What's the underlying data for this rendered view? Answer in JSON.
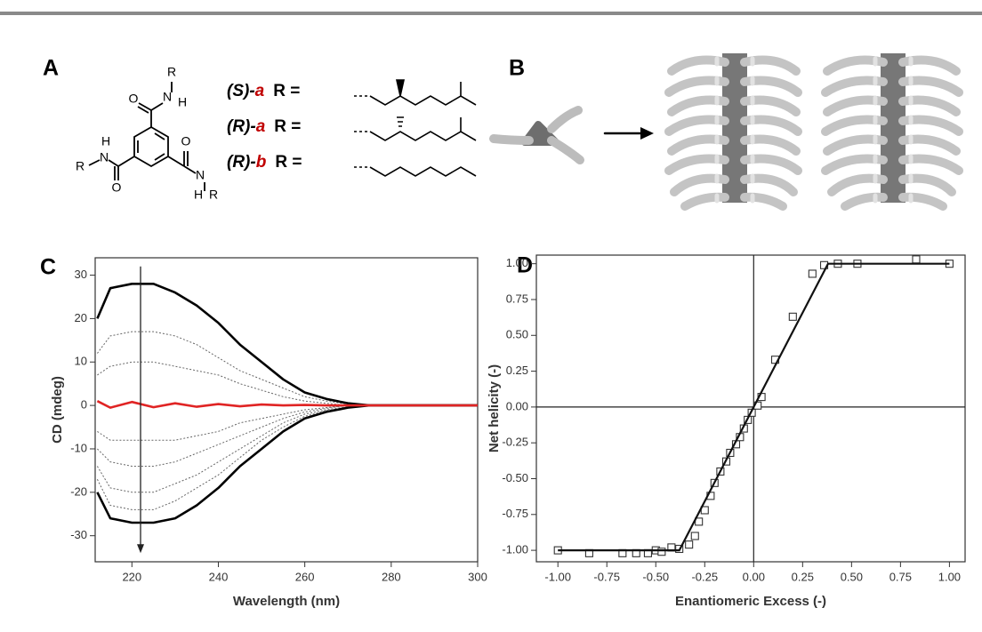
{
  "panel_a": {
    "label": "A",
    "atoms": [
      "R",
      "O",
      "N",
      "H",
      "H",
      "R",
      "N",
      "O",
      "O",
      "N",
      "H",
      "R"
    ],
    "compounds": [
      {
        "prefix": "(S)-",
        "letter": "a",
        "r": "R ="
      },
      {
        "prefix": "(R)-",
        "letter": "a",
        "r": "R ="
      },
      {
        "prefix": "(R)-",
        "letter": "b",
        "r": "R ="
      }
    ]
  },
  "panel_b": {
    "label": "B"
  },
  "chart_data": [
    {
      "type": "line",
      "panel_label": "C",
      "x_label": "Wavelength (nm)",
      "y_label": "CD (mdeg)",
      "xlim": [
        211.5,
        300
      ],
      "ylim": [
        -36,
        34
      ],
      "xticks": [
        220,
        240,
        260,
        280,
        300
      ],
      "yticks": [
        30,
        20,
        10,
        0,
        -10,
        -20,
        -30
      ],
      "x": [
        212,
        215,
        220,
        225,
        230,
        235,
        240,
        245,
        250,
        255,
        260,
        265,
        270,
        275,
        280,
        285,
        290,
        295,
        300
      ],
      "series": [
        {
          "color": "#666666",
          "style": "dotted",
          "values": [
            12,
            16,
            17,
            17,
            16,
            14,
            11,
            8,
            6,
            4,
            2,
            1,
            0.3,
            0,
            0,
            0,
            0,
            0,
            0
          ]
        },
        {
          "color": "#666666",
          "style": "dotted",
          "values": [
            7,
            9,
            10,
            10,
            9,
            8,
            7,
            5,
            3.5,
            2,
            1,
            0.5,
            0,
            0,
            0,
            0,
            0,
            0,
            0
          ]
        },
        {
          "color": "#666666",
          "style": "dotted",
          "values": [
            -6,
            -8,
            -8,
            -8,
            -8,
            -7,
            -6,
            -4,
            -3,
            -2,
            -1,
            -0.5,
            0,
            0,
            0,
            0,
            0,
            0,
            0
          ]
        },
        {
          "color": "#666666",
          "style": "dotted",
          "values": [
            -10,
            -13,
            -14,
            -14,
            -13,
            -11,
            -9,
            -7,
            -5,
            -3,
            -1.5,
            -0.7,
            0,
            0,
            0,
            0,
            0,
            0,
            0
          ]
        },
        {
          "color": "#666666",
          "style": "dotted",
          "values": [
            -14,
            -19,
            -20,
            -20,
            -18,
            -16,
            -13,
            -10,
            -7,
            -4,
            -2,
            -1,
            -0.3,
            0,
            0,
            0,
            0,
            0,
            0
          ]
        },
        {
          "color": "#666666",
          "style": "dotted",
          "values": [
            -17,
            -23,
            -24,
            -24,
            -22,
            -19,
            -16,
            -12,
            -8,
            -5,
            -2.5,
            -1.2,
            -0.4,
            0,
            0,
            0,
            0,
            0,
            0
          ]
        },
        {
          "color": "#000000",
          "style": "solid",
          "values": [
            20,
            27,
            28,
            28,
            26,
            23,
            19,
            14,
            10,
            6,
            3,
            1.5,
            0.5,
            0,
            0,
            0,
            0,
            0,
            0
          ]
        },
        {
          "color": "#000000",
          "style": "solid",
          "values": [
            -20,
            -26,
            -27,
            -27,
            -26,
            -23,
            -19,
            -14,
            -10,
            -6,
            -3,
            -1.5,
            -0.5,
            0,
            0,
            0,
            0,
            0,
            0
          ]
        },
        {
          "color": "#e02424",
          "style": "solid",
          "values": [
            1,
            -0.5,
            0.8,
            -0.4,
            0.5,
            -0.3,
            0.3,
            -0.2,
            0.2,
            0,
            0.1,
            0,
            0,
            0,
            0,
            0,
            0,
            0,
            0
          ]
        }
      ],
      "arrow": {
        "x": 222,
        "from": 32,
        "to": -34
      }
    },
    {
      "type": "scatter",
      "panel_label": "D",
      "x_label": "Enantiomeric Excess (-)",
      "y_label": "Net helicity (-)",
      "xlim": [
        -1.11,
        1.08
      ],
      "ylim": [
        -1.08,
        1.06
      ],
      "zero_lines": true,
      "xticks": [
        {
          "value": -1,
          "label": "-1.00"
        },
        {
          "value": -0.75,
          "label": "-0.75"
        },
        {
          "value": -0.5,
          "label": "-0.50"
        },
        {
          "value": -0.25,
          "label": "-0.25"
        },
        {
          "value": 0,
          "label": "0.00"
        },
        {
          "value": 0.25,
          "label": "0.25"
        },
        {
          "value": 0.5,
          "label": "0.50"
        },
        {
          "value": 0.75,
          "label": "0.75"
        },
        {
          "value": 1,
          "label": "1.00"
        }
      ],
      "yticks": [
        {
          "value": 1,
          "label": "1.00"
        },
        {
          "value": 0.75,
          "label": "0.75"
        },
        {
          "value": 0.5,
          "label": "0.50"
        },
        {
          "value": 0.25,
          "label": "0.25"
        },
        {
          "value": 0,
          "label": "0.00"
        },
        {
          "value": -0.25,
          "label": "-0.25"
        },
        {
          "value": -0.5,
          "label": "-0.50"
        },
        {
          "value": -0.75,
          "label": "-0.75"
        },
        {
          "value": -1,
          "label": "-1.00"
        }
      ],
      "series": [
        {
          "marker": "square",
          "color": "#333333",
          "x": [
            -1,
            -0.84,
            -0.67,
            -0.6,
            -0.54,
            -0.5,
            -0.47,
            -0.42,
            -0.38,
            -0.33,
            -0.3,
            -0.28,
            -0.25,
            -0.22,
            -0.2,
            -0.17,
            -0.14,
            -0.12,
            -0.09,
            -0.07,
            -0.05,
            -0.03,
            -0.01,
            0.02,
            0.04,
            0.11,
            0.2,
            0.3,
            0.36,
            0.43,
            0.53,
            0.83,
            1
          ],
          "values": [
            -1,
            -1.02,
            -1.02,
            -1.02,
            -1.02,
            -1,
            -1.01,
            -0.98,
            -0.99,
            -0.96,
            -0.9,
            -0.8,
            -0.72,
            -0.62,
            -0.53,
            -0.45,
            -0.38,
            -0.32,
            -0.26,
            -0.21,
            -0.15,
            -0.09,
            -0.04,
            0.01,
            0.07,
            0.33,
            0.63,
            0.93,
            0.99,
            1,
            1,
            1.03,
            1
          ]
        },
        {
          "marker": "none",
          "color": "#111111",
          "x": [
            -1,
            -0.38,
            0.38,
            1
          ],
          "values": [
            -1,
            -1,
            1,
            1
          ]
        }
      ]
    }
  ]
}
